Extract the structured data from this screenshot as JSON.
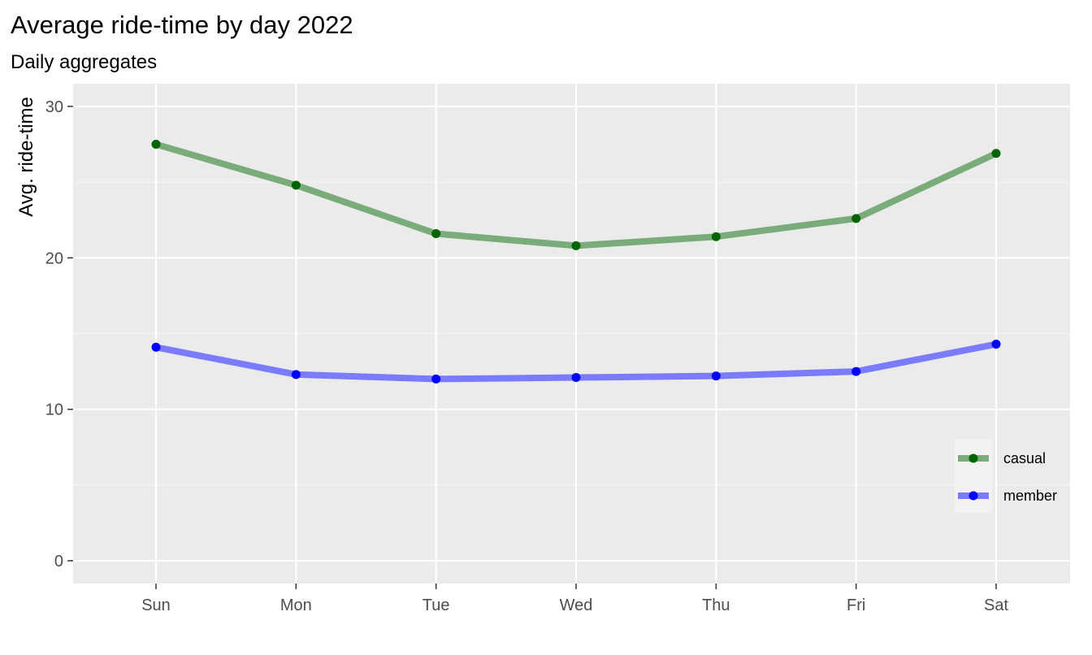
{
  "chart_data": {
    "type": "line",
    "title": "Average ride-time by day 2022",
    "subtitle": "Daily aggregates",
    "xlabel": "",
    "ylabel": "Avg. ride-time",
    "categories": [
      "Sun",
      "Mon",
      "Tue",
      "Wed",
      "Thu",
      "Fri",
      "Sat"
    ],
    "ylim": [
      -1.5,
      31.5
    ],
    "yticks": [
      0,
      10,
      20,
      30
    ],
    "yticks_labels": [
      "0",
      "10",
      "20",
      "30"
    ],
    "grid": true,
    "legend_position": "bottom-right",
    "series": [
      {
        "name": "casual",
        "values": [
          27.5,
          24.8,
          21.6,
          20.8,
          21.4,
          22.6,
          26.9
        ],
        "line_color": "#7aab7a",
        "point_color": "#006400"
      },
      {
        "name": "member",
        "values": [
          14.1,
          12.3,
          12.0,
          12.1,
          12.2,
          12.5,
          14.3
        ],
        "line_color": "#7b7bff",
        "point_color": "#0000ff"
      }
    ]
  },
  "colors": {
    "panel_background": "#ebebeb",
    "grid_major": "#ffffff",
    "grid_minor": "#f5f5f5",
    "legend_background": "#f2f2f2"
  }
}
